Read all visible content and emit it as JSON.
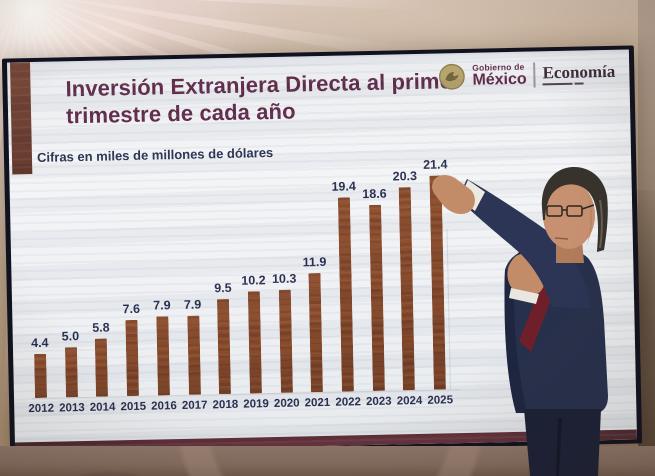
{
  "slide": {
    "title": "Inversión Extranjera Directa al primer trimestre de cada año",
    "units_note": "Cifras en miles de millones de dólares"
  },
  "brand": {
    "gobierno_top": "Gobierno de",
    "gobierno_name": "México",
    "ministry": "Economía"
  },
  "chart_data": {
    "type": "bar",
    "title": "Inversión Extranjera Directa al primer trimestre de cada año",
    "units": "Cifras en miles de millones de dólares",
    "categories": [
      "2012",
      "2013",
      "2014",
      "2015",
      "2016",
      "2017",
      "2018",
      "2019",
      "2020",
      "2021",
      "2022",
      "2023",
      "2024",
      "2025"
    ],
    "values": [
      4.4,
      5.0,
      5.8,
      7.6,
      7.9,
      7.9,
      9.5,
      10.2,
      10.3,
      11.9,
      19.4,
      18.6,
      20.3,
      21.4
    ],
    "value_labels": [
      "4.4",
      "5.0",
      "5.8",
      "7.6",
      "7.9",
      "7.9",
      "9.5",
      "10.2",
      "10.3",
      "11.9",
      "19.4",
      "18.6",
      "20.3",
      "21.4"
    ],
    "xlabel": "",
    "ylabel": "",
    "ylim": [
      0,
      22
    ],
    "gridlines": "none",
    "legend": "none",
    "bar_color": "#84411f",
    "label_color": "#1f2547"
  },
  "colors": {
    "title_text": "#5a2242",
    "accent_bar": "#6d3b2b",
    "slide_bottom_strip": "#5c2730",
    "year_label": "#1f2547"
  }
}
